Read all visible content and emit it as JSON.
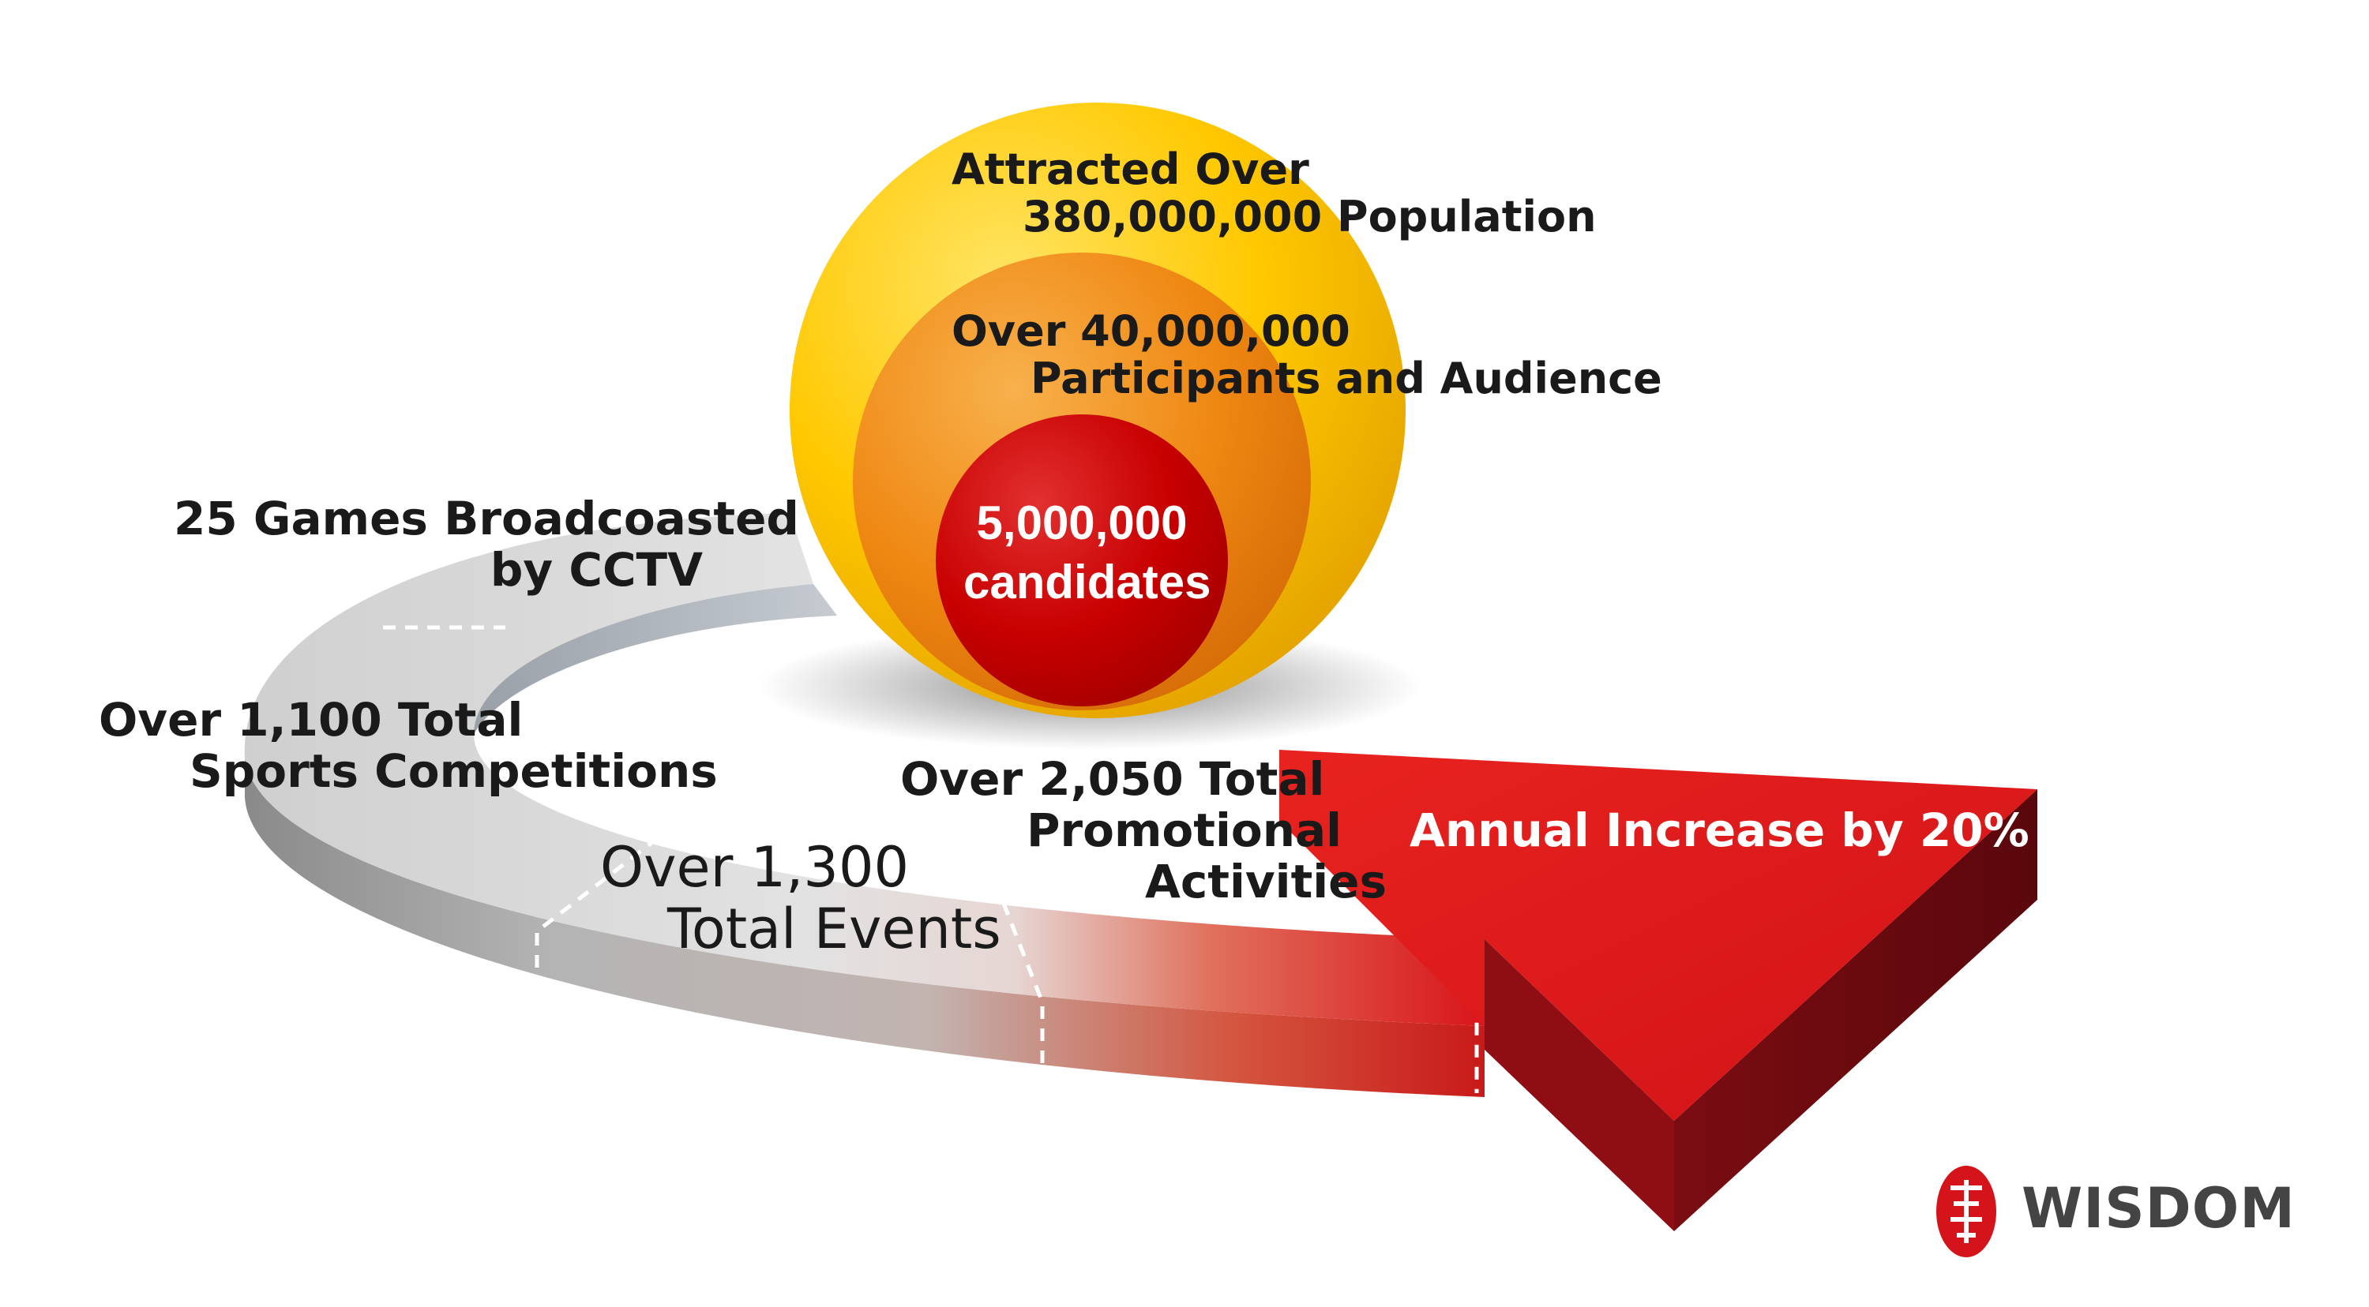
{
  "circles": {
    "outer": {
      "line1": "Attracted Over",
      "line2": "380,000,000 Population",
      "color": "#FFC800"
    },
    "middle": {
      "line1": "Over 40,000,000",
      "line2": "Participants and Audience",
      "color": "#F08A14"
    },
    "inner": {
      "line1": "5,000,000",
      "line2": "candidates",
      "color": "#CC0000"
    }
  },
  "ring_labels": {
    "broadcast": {
      "line1": "25 Games Broadcoasted",
      "line2": "by CCTV"
    },
    "sports": {
      "line1": "Over 1,100 Total",
      "line2": "Sports Competitions"
    },
    "events": {
      "line1": "Over 1,300",
      "line2": "Total Events"
    },
    "promo": {
      "line1": "Over 2,050 Total",
      "line2": "Promotional",
      "line3": "Activities"
    }
  },
  "arrow": {
    "label": "Annual Increase by 20%",
    "color": "#D9151B"
  },
  "logo": {
    "text": "WISDOM",
    "seal_color": "#D4141A"
  }
}
